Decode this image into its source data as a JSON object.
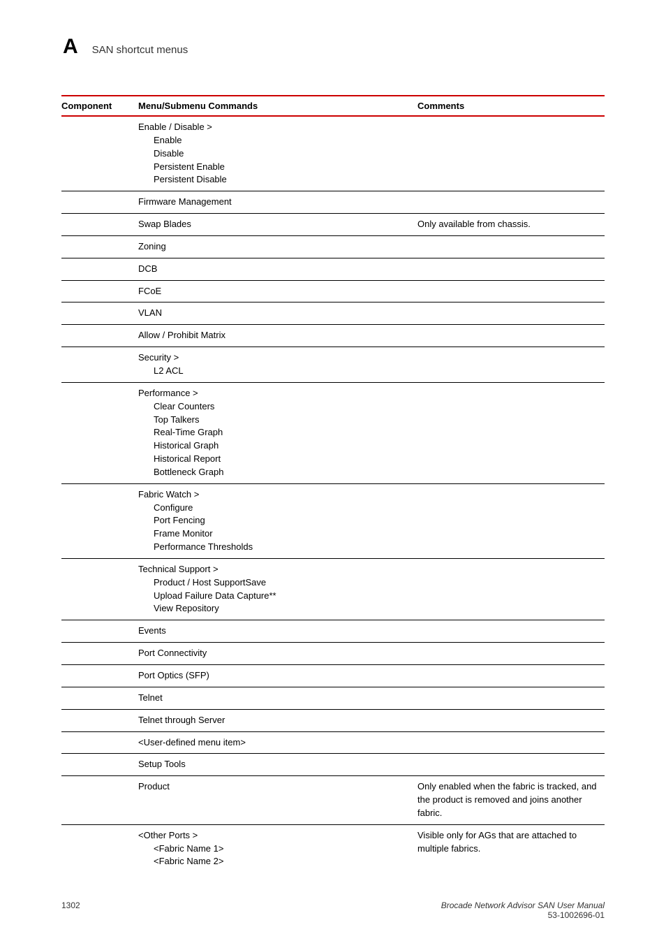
{
  "header": {
    "appendix_letter": "A",
    "section_title": "SAN shortcut menus"
  },
  "columns": {
    "component": "Component",
    "menu": "Menu/Submenu Commands",
    "comments": "Comments"
  },
  "rows": [
    {
      "component": "",
      "menu": {
        "main": "Enable / Disable >",
        "subs": [
          "Enable",
          "Disable",
          "Persistent Enable",
          "Persistent Disable"
        ]
      },
      "comments": "",
      "border": true
    },
    {
      "component": "",
      "menu": {
        "main": "Firmware Management",
        "subs": []
      },
      "comments": "",
      "border": true
    },
    {
      "component": "",
      "menu": {
        "main": "Swap Blades",
        "subs": []
      },
      "comments": "Only available from chassis.",
      "border": true
    },
    {
      "component": "",
      "menu": {
        "main": "Zoning",
        "subs": []
      },
      "comments": "",
      "border": true
    },
    {
      "component": "",
      "menu": {
        "main": "DCB",
        "subs": []
      },
      "comments": "",
      "border": true
    },
    {
      "component": "",
      "menu": {
        "main": "FCoE",
        "subs": []
      },
      "comments": "",
      "border": true
    },
    {
      "component": "",
      "menu": {
        "main": "VLAN",
        "subs": []
      },
      "comments": "",
      "border": true
    },
    {
      "component": "",
      "menu": {
        "main": "Allow / Prohibit Matrix",
        "subs": []
      },
      "comments": "",
      "border": true
    },
    {
      "component": "",
      "menu": {
        "main": "Security >",
        "subs": [
          "L2 ACL"
        ]
      },
      "comments": "",
      "border": true
    },
    {
      "component": "",
      "menu": {
        "main": "Performance >",
        "subs": [
          "Clear Counters",
          "Top Talkers",
          "Real-Time Graph",
          "Historical Graph",
          "Historical Report",
          "Bottleneck Graph"
        ]
      },
      "comments": "",
      "border": true
    },
    {
      "component": "",
      "menu": {
        "main": "Fabric Watch >",
        "subs": [
          "Configure",
          "Port Fencing",
          "Frame Monitor",
          "Performance Thresholds"
        ]
      },
      "comments": "",
      "border": true
    },
    {
      "component": "",
      "menu": {
        "main": "Technical Support >",
        "subs": [
          "Product / Host SupportSave",
          "Upload Failure Data Capture**",
          "View Repository"
        ]
      },
      "comments": "",
      "border": true
    },
    {
      "component": "",
      "menu": {
        "main": "Events",
        "subs": []
      },
      "comments": "",
      "border": true
    },
    {
      "component": "",
      "menu": {
        "main": "Port Connectivity",
        "subs": []
      },
      "comments": "",
      "border": true
    },
    {
      "component": "",
      "menu": {
        "main": "Port Optics (SFP)",
        "subs": []
      },
      "comments": "",
      "border": true
    },
    {
      "component": "",
      "menu": {
        "main": "Telnet",
        "subs": []
      },
      "comments": "",
      "border": true
    },
    {
      "component": "",
      "menu": {
        "main": "Telnet through Server",
        "subs": []
      },
      "comments": "",
      "border": true
    },
    {
      "component": "",
      "menu": {
        "main": "<User-defined menu item>",
        "subs": []
      },
      "comments": "",
      "border": true
    },
    {
      "component": "",
      "menu": {
        "main": "Setup Tools",
        "subs": []
      },
      "comments": "",
      "border": true
    },
    {
      "component": "",
      "menu": {
        "main": "Product",
        "subs": []
      },
      "comments": "Only enabled when the fabric is tracked, and the product is removed and joins another fabric.",
      "border": true
    },
    {
      "component": "",
      "menu": {
        "main": "<Other Ports >",
        "subs": [
          "<Fabric Name 1>",
          "<Fabric Name 2>"
        ]
      },
      "comments": "Visible only for AGs that are attached to multiple fabrics.",
      "border": false
    }
  ],
  "footer": {
    "page_number": "1302",
    "doc_title": "Brocade Network Advisor SAN User Manual",
    "doc_code": "53-1002696-01"
  },
  "colors": {
    "accent_red": "#cc0000",
    "text": "#000000",
    "bg": "#ffffff",
    "border": "#000000"
  }
}
